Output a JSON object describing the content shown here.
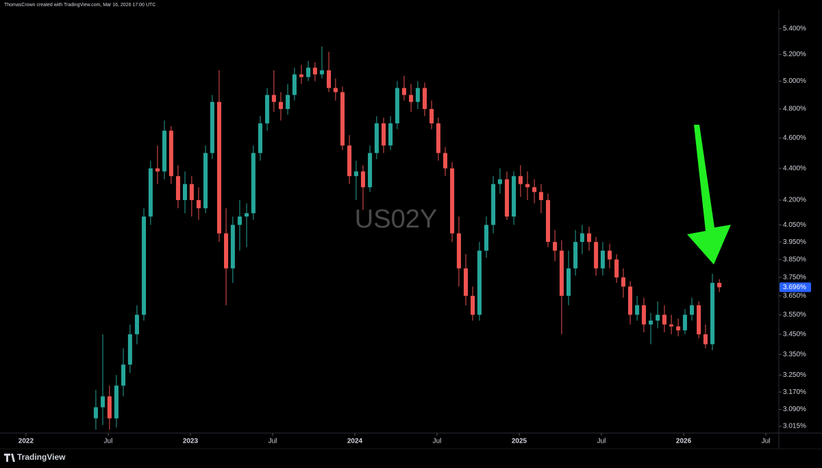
{
  "chart_data": {
    "type": "candlestick",
    "attribution": "ThomasCrown created with TradingView.com, Mar 16, 2026 17:00 UTC",
    "watermark": "US02Y",
    "brand": "TradingView",
    "log_scale": true,
    "up_color": "#26a69a",
    "down_color": "#ef5350",
    "last_price_label": "3.696%",
    "last_price_color": "#2962ff",
    "xlim": [
      2021.842,
      2026.579
    ],
    "xticks": [
      2022,
      {
        "value": 2022.5,
        "label": "Jul"
      },
      2023,
      {
        "value": 2023.5,
        "label": "Jul"
      },
      2024,
      {
        "value": 2024.5,
        "label": "Jul"
      },
      2025,
      {
        "value": 2025.5,
        "label": "Jul"
      },
      2026,
      {
        "value": 2026.5,
        "label": "Jul"
      }
    ],
    "ylim": [
      2.985,
      5.553
    ],
    "yticks": [
      {
        "value": 5.4,
        "label": "5.400%"
      },
      {
        "value": 5.2,
        "label": "5.200%"
      },
      {
        "value": 5.0,
        "label": "5.000%"
      },
      {
        "value": 4.8,
        "label": "4.800%"
      },
      {
        "value": 4.6,
        "label": "4.600%"
      },
      {
        "value": 4.4,
        "label": "4.400%"
      },
      {
        "value": 4.2,
        "label": "4.200%"
      },
      {
        "value": 4.05,
        "label": "4.050%"
      },
      {
        "value": 3.95,
        "label": "3.950%"
      },
      {
        "value": 3.85,
        "label": "3.850%"
      },
      {
        "value": 3.75,
        "label": "3.750%"
      },
      {
        "value": 3.65,
        "label": "3.650%"
      },
      {
        "value": 3.55,
        "label": "3.550%"
      },
      {
        "value": 3.45,
        "label": "3.450%"
      },
      {
        "value": 3.35,
        "label": "3.350%"
      },
      {
        "value": 3.25,
        "label": "3.250%"
      },
      {
        "value": 3.17,
        "label": "3.170%"
      },
      {
        "value": 3.09,
        "label": "3.090%"
      },
      {
        "value": 3.015,
        "label": "3.015%"
      }
    ],
    "candles": [
      [
        2022.425,
        3.05,
        3.18,
        3.0,
        3.1
      ],
      [
        2022.467,
        3.1,
        3.45,
        3.02,
        3.15
      ],
      [
        2022.508,
        3.15,
        3.2,
        3.0,
        3.05
      ],
      [
        2022.55,
        3.05,
        3.25,
        3.01,
        3.2
      ],
      [
        2022.592,
        3.2,
        3.38,
        3.15,
        3.3
      ],
      [
        2022.633,
        3.3,
        3.5,
        3.26,
        3.45
      ],
      [
        2022.675,
        3.45,
        3.6,
        3.4,
        3.55
      ],
      [
        2022.717,
        3.55,
        4.15,
        3.52,
        4.1
      ],
      [
        2022.758,
        4.1,
        4.45,
        4.05,
        4.4
      ],
      [
        2022.8,
        4.4,
        4.55,
        4.3,
        4.38
      ],
      [
        2022.842,
        4.38,
        4.72,
        4.33,
        4.65
      ],
      [
        2022.883,
        4.65,
        4.68,
        4.3,
        4.35
      ],
      [
        2022.925,
        4.35,
        4.42,
        4.15,
        4.2
      ],
      [
        2022.967,
        4.2,
        4.38,
        4.12,
        4.3
      ],
      [
        2023.008,
        4.3,
        4.35,
        4.1,
        4.2
      ],
      [
        2023.05,
        4.2,
        4.28,
        4.08,
        4.15
      ],
      [
        2023.092,
        4.15,
        4.55,
        4.12,
        4.5
      ],
      [
        2023.133,
        4.5,
        4.9,
        4.46,
        4.85
      ],
      [
        2023.175,
        4.85,
        5.08,
        3.95,
        4.0
      ],
      [
        2023.217,
        4.0,
        4.15,
        3.6,
        3.8
      ],
      [
        2023.258,
        3.8,
        4.1,
        3.72,
        4.05
      ],
      [
        2023.3,
        4.05,
        4.2,
        3.9,
        4.1
      ],
      [
        2023.342,
        4.1,
        4.18,
        3.92,
        4.12
      ],
      [
        2023.383,
        4.12,
        4.55,
        4.08,
        4.5
      ],
      [
        2023.425,
        4.5,
        4.75,
        4.45,
        4.7
      ],
      [
        2023.467,
        4.7,
        4.95,
        4.65,
        4.9
      ],
      [
        2023.508,
        4.9,
        5.08,
        4.78,
        4.85
      ],
      [
        2023.55,
        4.85,
        4.92,
        4.72,
        4.8
      ],
      [
        2023.592,
        4.8,
        4.98,
        4.76,
        4.9
      ],
      [
        2023.633,
        4.9,
        5.1,
        4.86,
        5.05
      ],
      [
        2023.675,
        5.05,
        5.12,
        4.98,
        5.03
      ],
      [
        2023.717,
        5.03,
        5.15,
        5.0,
        5.1
      ],
      [
        2023.758,
        5.1,
        5.14,
        5.0,
        5.05
      ],
      [
        2023.8,
        5.05,
        5.26,
        5.02,
        5.08
      ],
      [
        2023.842,
        5.08,
        5.22,
        4.92,
        4.95
      ],
      [
        2023.883,
        4.95,
        5.02,
        4.86,
        4.92
      ],
      [
        2023.925,
        4.92,
        4.96,
        4.52,
        4.55
      ],
      [
        2023.967,
        4.55,
        4.62,
        4.3,
        4.35
      ],
      [
        2024.008,
        4.35,
        4.45,
        4.2,
        4.38
      ],
      [
        2024.05,
        4.38,
        4.42,
        4.14,
        4.28
      ],
      [
        2024.092,
        4.28,
        4.55,
        4.25,
        4.5
      ],
      [
        2024.133,
        4.5,
        4.75,
        4.46,
        4.7
      ],
      [
        2024.175,
        4.7,
        4.74,
        4.5,
        4.55
      ],
      [
        2024.217,
        4.55,
        4.75,
        4.52,
        4.7
      ],
      [
        2024.258,
        4.7,
        5.0,
        4.66,
        4.95
      ],
      [
        2024.3,
        4.95,
        5.04,
        4.86,
        4.9
      ],
      [
        2024.342,
        4.9,
        4.98,
        4.78,
        4.85
      ],
      [
        2024.383,
        4.85,
        5.0,
        4.8,
        4.95
      ],
      [
        2024.425,
        4.95,
        4.99,
        4.75,
        4.8
      ],
      [
        2024.467,
        4.8,
        4.86,
        4.66,
        4.7
      ],
      [
        2024.508,
        4.7,
        4.74,
        4.45,
        4.5
      ],
      [
        2024.55,
        4.5,
        4.54,
        4.35,
        4.4
      ],
      [
        2024.592,
        4.4,
        4.44,
        3.95,
        4.0
      ],
      [
        2024.633,
        4.0,
        4.1,
        3.7,
        3.8
      ],
      [
        2024.675,
        3.8,
        3.88,
        3.6,
        3.65
      ],
      [
        2024.717,
        3.65,
        3.7,
        3.52,
        3.55
      ],
      [
        2024.758,
        3.55,
        3.95,
        3.52,
        3.9
      ],
      [
        2024.8,
        3.9,
        4.1,
        3.86,
        4.05
      ],
      [
        2024.842,
        4.05,
        4.35,
        4.0,
        4.3
      ],
      [
        2024.883,
        4.3,
        4.4,
        4.24,
        4.33
      ],
      [
        2024.925,
        4.33,
        4.38,
        4.08,
        4.1
      ],
      [
        2024.967,
        4.1,
        4.38,
        4.05,
        4.35
      ],
      [
        2025.008,
        4.35,
        4.42,
        4.22,
        4.3
      ],
      [
        2025.05,
        4.3,
        4.38,
        4.2,
        4.28
      ],
      [
        2025.092,
        4.28,
        4.33,
        4.18,
        4.25
      ],
      [
        2025.133,
        4.25,
        4.3,
        4.12,
        4.2
      ],
      [
        2025.175,
        4.2,
        4.24,
        3.92,
        3.95
      ],
      [
        2025.217,
        3.95,
        4.02,
        3.84,
        3.9
      ],
      [
        2025.258,
        3.9,
        3.96,
        3.45,
        3.65
      ],
      [
        2025.3,
        3.65,
        3.9,
        3.6,
        3.8
      ],
      [
        2025.342,
        3.8,
        4.02,
        3.76,
        3.95
      ],
      [
        2025.383,
        3.95,
        4.05,
        3.88,
        4.0
      ],
      [
        2025.425,
        4.0,
        4.04,
        3.9,
        3.95
      ],
      [
        2025.467,
        3.95,
        3.98,
        3.76,
        3.8
      ],
      [
        2025.508,
        3.8,
        3.95,
        3.76,
        3.9
      ],
      [
        2025.55,
        3.9,
        3.94,
        3.8,
        3.85
      ],
      [
        2025.592,
        3.85,
        3.88,
        3.72,
        3.75
      ],
      [
        2025.633,
        3.75,
        3.8,
        3.64,
        3.7
      ],
      [
        2025.675,
        3.7,
        3.73,
        3.5,
        3.55
      ],
      [
        2025.717,
        3.55,
        3.65,
        3.52,
        3.6
      ],
      [
        2025.758,
        3.6,
        3.64,
        3.46,
        3.5
      ],
      [
        2025.8,
        3.5,
        3.56,
        3.4,
        3.52
      ],
      [
        2025.842,
        3.52,
        3.62,
        3.48,
        3.55
      ],
      [
        2025.883,
        3.55,
        3.6,
        3.46,
        3.5
      ],
      [
        2025.925,
        3.5,
        3.55,
        3.45,
        3.49
      ],
      [
        2025.967,
        3.49,
        3.53,
        3.44,
        3.47
      ],
      [
        2026.008,
        3.47,
        3.58,
        3.45,
        3.55
      ],
      [
        2026.05,
        3.55,
        3.64,
        3.52,
        3.6
      ],
      [
        2026.092,
        3.6,
        3.62,
        3.43,
        3.45
      ],
      [
        2026.133,
        3.45,
        3.5,
        3.38,
        3.4
      ],
      [
        2026.175,
        3.4,
        3.77,
        3.37,
        3.72
      ],
      [
        2026.217,
        3.72,
        3.74,
        3.67,
        3.696
      ]
    ]
  }
}
